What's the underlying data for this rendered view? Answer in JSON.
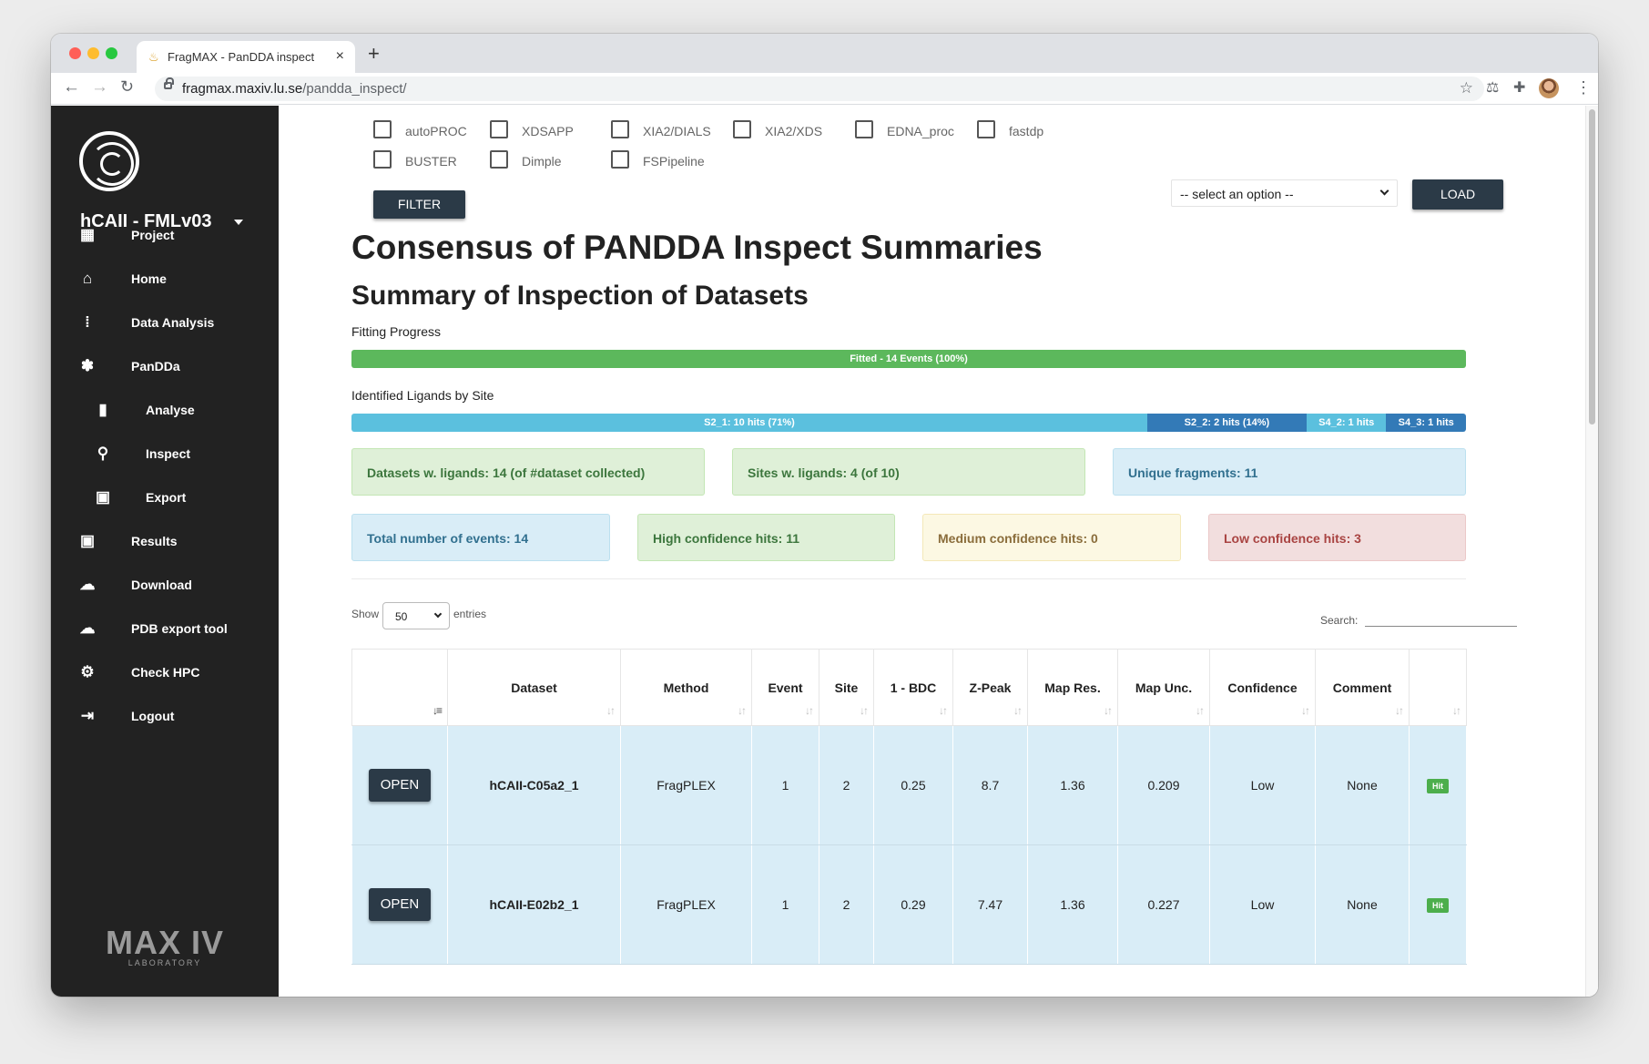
{
  "browser": {
    "tab_title": "FragMAX - PanDDA inspect",
    "tab_favicon": "flask-favicon",
    "url_host": "fragmax.maxiv.lu.se",
    "url_path": "/pandda_inspect/"
  },
  "sidebar": {
    "project": "hCAII - FMLv03",
    "items": [
      {
        "label": "Project",
        "icon": "dashboard-icon",
        "glyph": "▦"
      },
      {
        "label": "Home",
        "icon": "home-icon",
        "glyph": "⌂"
      },
      {
        "label": "Data Analysis",
        "icon": "grid-dots-icon",
        "glyph": "⁞"
      },
      {
        "label": "PanDDa",
        "icon": "paw-icon",
        "glyph": "✽"
      },
      {
        "label": "Analyse",
        "icon": "bar-chart-icon",
        "glyph": "▮"
      },
      {
        "label": "Inspect",
        "icon": "search-icon",
        "glyph": "⚲"
      },
      {
        "label": "Export",
        "icon": "chart-box-icon",
        "glyph": "▣"
      },
      {
        "label": "Results",
        "icon": "results-icon",
        "glyph": "▣"
      },
      {
        "label": "Download",
        "icon": "cloud-download-icon",
        "glyph": "☁"
      },
      {
        "label": "PDB export tool",
        "icon": "cloud-upload-icon",
        "glyph": "☁"
      },
      {
        "label": "Check HPC",
        "icon": "cpu-icon",
        "glyph": "⚙"
      },
      {
        "label": "Logout",
        "icon": "logout-icon",
        "glyph": "⇥"
      }
    ],
    "footer_logo_big": "MAX IV",
    "footer_logo_small": "LABORATORY"
  },
  "filters": {
    "checkboxes": [
      "autoPROC",
      "XDSAPP",
      "XIA2/DIALS",
      "XIA2/XDS",
      "EDNA_proc",
      "fastdp",
      "BUSTER",
      "Dimple",
      "FSPipeline"
    ],
    "filter_button": "FILTER",
    "select_placeholder": "-- select an option --",
    "load_button": "LOAD"
  },
  "headings": {
    "title": "Consensus of PANDDA Inspect Summaries",
    "subtitle": "Summary of Inspection of Datasets",
    "fitting_label": "Fitting Progress",
    "ligands_label": "Identified Ligands by Site"
  },
  "fitting_bar": [
    {
      "label": "Fitted - 14 Events (100%)",
      "fraction": 1.0,
      "color": "#5cb85c"
    }
  ],
  "site_bar": [
    {
      "label": "S2_1: 10 hits (71%)",
      "fraction": 0.714,
      "color": "#5bc0de"
    },
    {
      "label": "S2_2: 2 hits (14%)",
      "fraction": 0.143,
      "color": "#337ab7"
    },
    {
      "label": "S4_2: 1 hits",
      "fraction": 0.0715,
      "color": "#5bc0de"
    },
    {
      "label": "S4_3: 1 hits",
      "fraction": 0.0715,
      "color": "#337ab7"
    }
  ],
  "stats": {
    "datasets": "Datasets w. ligands: 14 (of #dataset collected)",
    "sites": "Sites w. ligands: 4 (of 10)",
    "fragments": "Unique fragments: 11",
    "events": "Total number of events: 14",
    "high": "High confidence hits: 11",
    "medium": "Medium confidence hits: 0",
    "low": "Low confidence hits: 3"
  },
  "table_controls": {
    "show_label": "Show",
    "entries_value": "50",
    "entries_label": "entries",
    "search_label": "Search:"
  },
  "table": {
    "headers": [
      "",
      "Dataset",
      "Method",
      "Event",
      "Site",
      "1 - BDC",
      "Z-Peak",
      "Map Res.",
      "Map Unc.",
      "Confidence",
      "Comment",
      ""
    ],
    "open_label": "OPEN",
    "rows": [
      {
        "dataset": "hCAII-C05a2_1",
        "method": "FragPLEX",
        "event": "1",
        "site": "2",
        "bdc": "0.25",
        "zpeak": "8.7",
        "res": "1.36",
        "unc": "0.209",
        "conf": "Low",
        "comment": "None",
        "badge": "Hit"
      },
      {
        "dataset": "hCAII-E02b2_1",
        "method": "FragPLEX",
        "event": "1",
        "site": "2",
        "bdc": "0.29",
        "zpeak": "7.47",
        "res": "1.36",
        "unc": "0.227",
        "conf": "Low",
        "comment": "None",
        "badge": "Hit"
      }
    ]
  }
}
